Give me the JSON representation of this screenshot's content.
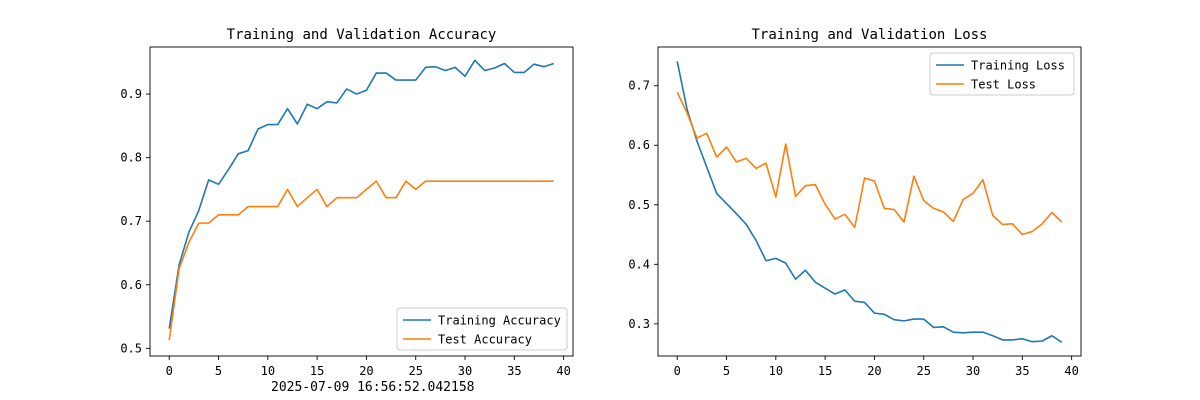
{
  "footer_timestamp": "2025-07-09 16:56:52.042158",
  "colors": {
    "series1": "#1f77b4",
    "series2": "#ff7f0e",
    "axis": "#000000",
    "legend_border": "#cccccc"
  },
  "chart_data": [
    {
      "type": "line",
      "title": "Training and Validation Accuracy",
      "xlabel": "",
      "ylabel": "",
      "xlim": [
        -1.95,
        40.95
      ],
      "ylim": [
        0.488,
        0.974
      ],
      "xticks": [
        0,
        5,
        10,
        15,
        20,
        25,
        30,
        35,
        40
      ],
      "yticks": [
        0.5,
        0.6,
        0.7,
        0.8,
        0.9
      ],
      "ytick_labels": [
        "0.5",
        "0.6",
        "0.7",
        "0.8",
        "0.9"
      ],
      "grid": false,
      "legend_position": "lower-right",
      "x": [
        0,
        1,
        2,
        3,
        4,
        5,
        6,
        7,
        8,
        9,
        10,
        11,
        12,
        13,
        14,
        15,
        16,
        17,
        18,
        19,
        20,
        21,
        22,
        23,
        24,
        25,
        26,
        27,
        28,
        29,
        30,
        31,
        32,
        33,
        34,
        35,
        36,
        37,
        38,
        39
      ],
      "series": [
        {
          "name": "Training Accuracy",
          "color": "#1f77b4",
          "values": [
            0.531,
            0.631,
            0.683,
            0.717,
            0.765,
            0.758,
            0.781,
            0.806,
            0.811,
            0.845,
            0.852,
            0.852,
            0.877,
            0.853,
            0.884,
            0.877,
            0.888,
            0.886,
            0.908,
            0.9,
            0.906,
            0.933,
            0.933,
            0.922,
            0.922,
            0.922,
            0.942,
            0.943,
            0.937,
            0.942,
            0.928,
            0.953,
            0.937,
            0.941,
            0.948,
            0.934,
            0.934,
            0.947,
            0.943,
            0.948
          ]
        },
        {
          "name": "Test Accuracy",
          "color": "#ff7f0e",
          "values": [
            0.513,
            0.625,
            0.667,
            0.697,
            0.697,
            0.71,
            0.71,
            0.71,
            0.723,
            0.723,
            0.723,
            0.723,
            0.75,
            0.723,
            0.737,
            0.75,
            0.723,
            0.737,
            0.737,
            0.737,
            0.75,
            0.763,
            0.737,
            0.737,
            0.763,
            0.75,
            0.763,
            0.763,
            0.763,
            0.763,
            0.763,
            0.763,
            0.763,
            0.763,
            0.763,
            0.763,
            0.763,
            0.763,
            0.763,
            0.763
          ]
        }
      ]
    },
    {
      "type": "line",
      "title": "Training and Validation Loss",
      "xlabel": "",
      "ylabel": "",
      "xlim": [
        -1.95,
        40.95
      ],
      "ylim": [
        0.246,
        0.765
      ],
      "xticks": [
        0,
        5,
        10,
        15,
        20,
        25,
        30,
        35,
        40
      ],
      "yticks": [
        0.3,
        0.4,
        0.5,
        0.6,
        0.7
      ],
      "ytick_labels": [
        "0.3",
        "0.4",
        "0.5",
        "0.6",
        "0.7"
      ],
      "grid": false,
      "legend_position": "upper-right",
      "x": [
        0,
        1,
        2,
        3,
        4,
        5,
        6,
        7,
        8,
        9,
        10,
        11,
        12,
        13,
        14,
        15,
        16,
        17,
        18,
        19,
        20,
        21,
        22,
        23,
        24,
        25,
        26,
        27,
        28,
        29,
        30,
        31,
        32,
        33,
        34,
        35,
        36,
        37,
        38,
        39
      ],
      "series": [
        {
          "name": "Training Loss",
          "color": "#1f77b4",
          "values": [
            0.741,
            0.66,
            0.607,
            0.563,
            0.519,
            0.502,
            0.485,
            0.467,
            0.44,
            0.406,
            0.41,
            0.402,
            0.375,
            0.39,
            0.37,
            0.36,
            0.35,
            0.357,
            0.338,
            0.336,
            0.318,
            0.316,
            0.307,
            0.305,
            0.308,
            0.308,
            0.294,
            0.295,
            0.286,
            0.285,
            0.286,
            0.286,
            0.28,
            0.273,
            0.273,
            0.275,
            0.27,
            0.271,
            0.28,
            0.269
          ]
        },
        {
          "name": "Test Loss",
          "color": "#ff7f0e",
          "values": [
            0.689,
            0.654,
            0.612,
            0.62,
            0.58,
            0.597,
            0.572,
            0.578,
            0.561,
            0.57,
            0.513,
            0.602,
            0.514,
            0.532,
            0.534,
            0.501,
            0.476,
            0.484,
            0.462,
            0.545,
            0.54,
            0.494,
            0.492,
            0.471,
            0.548,
            0.507,
            0.494,
            0.488,
            0.472,
            0.509,
            0.519,
            0.542,
            0.482,
            0.467,
            0.468,
            0.45,
            0.455,
            0.468,
            0.487,
            0.471
          ]
        }
      ]
    }
  ]
}
